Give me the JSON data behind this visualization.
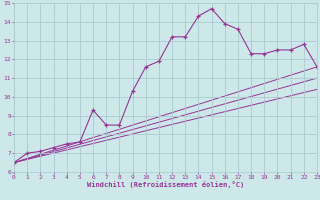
{
  "xlabel": "Windchill (Refroidissement éolien,°C)",
  "bg_color": "#cce8e8",
  "grid_color": "#aacccc",
  "line_color": "#993399",
  "xlim": [
    0,
    23
  ],
  "ylim": [
    6,
    15
  ],
  "xticks": [
    0,
    1,
    2,
    3,
    4,
    5,
    6,
    7,
    8,
    9,
    10,
    11,
    12,
    13,
    14,
    15,
    16,
    17,
    18,
    19,
    20,
    21,
    22,
    23
  ],
  "yticks": [
    6,
    7,
    8,
    9,
    10,
    11,
    12,
    13,
    14,
    15
  ],
  "line1_x": [
    0,
    1,
    2,
    3,
    4,
    5,
    6,
    7,
    8,
    9,
    10,
    11,
    12,
    13,
    14,
    15,
    16,
    17,
    18,
    19,
    20,
    21,
    22,
    23
  ],
  "line1_y": [
    6.5,
    7.0,
    7.1,
    7.3,
    7.5,
    7.6,
    9.3,
    8.5,
    8.5,
    10.3,
    11.6,
    11.9,
    13.2,
    13.2,
    14.3,
    14.7,
    13.9,
    13.6,
    12.3,
    12.3,
    12.5,
    12.5,
    12.8,
    11.6
  ],
  "line2_x": [
    0,
    23
  ],
  "line2_y": [
    6.5,
    11.6
  ],
  "line3_x": [
    0,
    23
  ],
  "line3_y": [
    6.5,
    11.0
  ],
  "line4_x": [
    0,
    23
  ],
  "line4_y": [
    6.5,
    10.4
  ],
  "marker": "+"
}
